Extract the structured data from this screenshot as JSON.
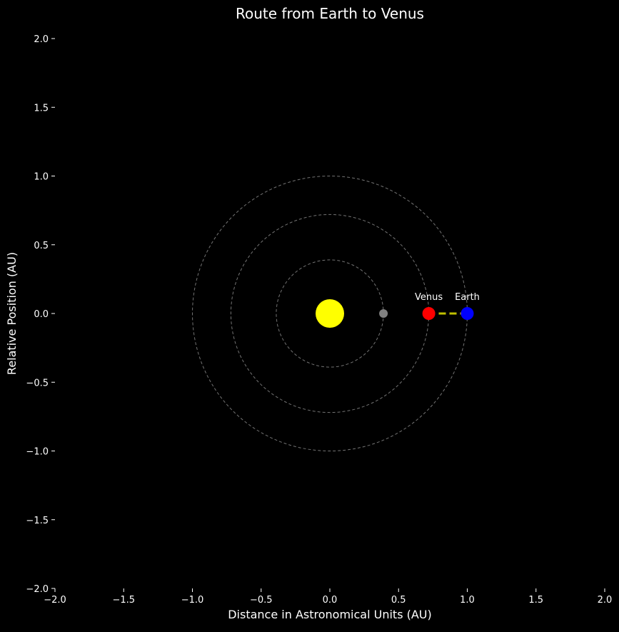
{
  "chart_data": {
    "type": "scatter",
    "title": "Route from Earth to Venus",
    "xlabel": "Distance in Astronomical Units (AU)",
    "ylabel": "Relative Position (AU)",
    "xlim": [
      -2.0,
      2.0
    ],
    "ylim": [
      -2.0,
      2.0
    ],
    "xticks": [
      -2.0,
      -1.5,
      -1.0,
      -0.5,
      0.0,
      0.5,
      1.0,
      1.5,
      2.0
    ],
    "yticks": [
      -2.0,
      -1.5,
      -1.0,
      -0.5,
      0.0,
      0.5,
      1.0,
      1.5,
      2.0
    ],
    "xtick_labels": [
      "−2.0",
      "−1.5",
      "−1.0",
      "−0.5",
      "0.0",
      "0.5",
      "1.0",
      "1.5",
      "2.0"
    ],
    "ytick_labels": [
      "−2.0",
      "−1.5",
      "−1.0",
      "−0.5",
      "0.0",
      "0.5",
      "1.0",
      "1.5",
      "2.0"
    ],
    "grid": false,
    "background_color": "#000000",
    "text_color": "#ffffff",
    "orbits": [
      {
        "radius": 0.39,
        "color": "#808080"
      },
      {
        "radius": 0.72,
        "color": "#808080"
      },
      {
        "radius": 1.0,
        "color": "#808080"
      }
    ],
    "bodies": [
      {
        "label": "",
        "x": 0.0,
        "y": 0.0,
        "color": "#ffff00",
        "size": "large"
      },
      {
        "label": "",
        "x": 0.39,
        "y": 0.0,
        "color": "#808080",
        "size": "small"
      },
      {
        "label": "Venus",
        "x": 0.72,
        "y": 0.0,
        "color": "#ff0000",
        "size": "medium"
      },
      {
        "label": "Earth",
        "x": 1.0,
        "y": 0.0,
        "color": "#0000ff",
        "size": "medium"
      }
    ],
    "route": {
      "from": [
        1.0,
        0.0
      ],
      "to": [
        0.72,
        0.0
      ],
      "color": "#bfbf00",
      "style": "dashed"
    }
  }
}
